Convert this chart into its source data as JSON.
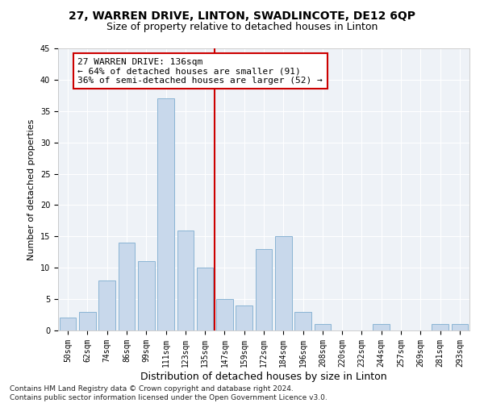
{
  "title": "27, WARREN DRIVE, LINTON, SWADLINCOTE, DE12 6QP",
  "subtitle": "Size of property relative to detached houses in Linton",
  "xlabel": "Distribution of detached houses by size in Linton",
  "ylabel": "Number of detached properties",
  "bar_labels": [
    "50sqm",
    "62sqm",
    "74sqm",
    "86sqm",
    "99sqm",
    "111sqm",
    "123sqm",
    "135sqm",
    "147sqm",
    "159sqm",
    "172sqm",
    "184sqm",
    "196sqm",
    "208sqm",
    "220sqm",
    "232sqm",
    "244sqm",
    "257sqm",
    "269sqm",
    "281sqm",
    "293sqm"
  ],
  "bar_values": [
    2,
    3,
    8,
    14,
    11,
    37,
    16,
    10,
    5,
    4,
    13,
    15,
    3,
    1,
    0,
    0,
    1,
    0,
    0,
    1,
    1
  ],
  "bar_color": "#c8d8eb",
  "bar_edge_color": "#8ab4d4",
  "vline_x": 7.5,
  "vline_color": "#cc0000",
  "annotation_box_text": "27 WARREN DRIVE: 136sqm\n← 64% of detached houses are smaller (91)\n36% of semi-detached houses are larger (52) →",
  "ylim": [
    0,
    45
  ],
  "background_color": "#eef2f7",
  "grid_color": "#ffffff",
  "footer_text": "Contains HM Land Registry data © Crown copyright and database right 2024.\nContains public sector information licensed under the Open Government Licence v3.0.",
  "title_fontsize": 10,
  "subtitle_fontsize": 9,
  "xlabel_fontsize": 9,
  "ylabel_fontsize": 8,
  "tick_fontsize": 7,
  "annotation_fontsize": 8,
  "footer_fontsize": 6.5
}
